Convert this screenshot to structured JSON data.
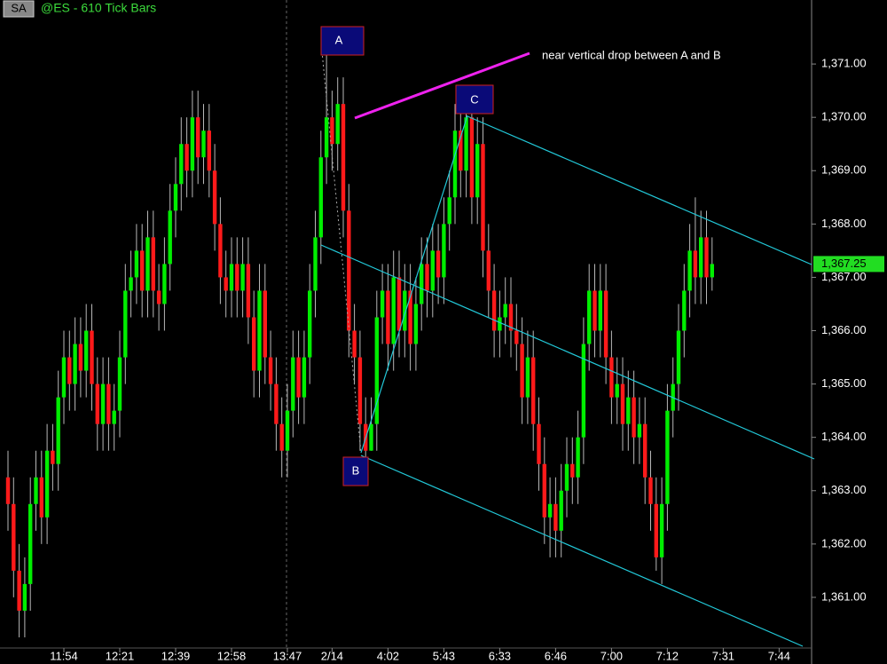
{
  "header": {
    "badge": "SA",
    "title": "@ES - 610 Tick Bars"
  },
  "chart_data": {
    "type": "candlestick",
    "categories": [
      null,
      null,
      null,
      null,
      null,
      null,
      null,
      null,
      null,
      null,
      "11:54",
      null,
      null,
      null,
      null,
      null,
      null,
      null,
      null,
      null,
      "12:21",
      null,
      null,
      null,
      null,
      null,
      null,
      null,
      null,
      null,
      "12:39",
      null,
      null,
      null,
      null,
      null,
      null,
      null,
      null,
      null,
      "12:58",
      null,
      null,
      null,
      null,
      null,
      null,
      null,
      null,
      null,
      "13:47",
      null,
      null,
      null,
      null,
      null,
      null,
      null,
      "2/14",
      null,
      null,
      null,
      null,
      null,
      null,
      null,
      null,
      null,
      "4:02",
      null,
      null,
      null,
      null,
      null,
      null,
      null,
      null,
      null,
      "5:43",
      null,
      null,
      null,
      null,
      null,
      null,
      null,
      null,
      null,
      "6:33",
      null,
      null,
      null,
      null,
      null,
      null,
      null,
      null,
      null,
      "6:46",
      null,
      null,
      null,
      null,
      null,
      null,
      null,
      null,
      null,
      "7:00",
      null,
      null,
      null,
      null,
      null,
      null,
      null,
      null,
      null,
      "7:12",
      null,
      null,
      null,
      null,
      null,
      null,
      null,
      null,
      null,
      "7:31",
      null,
      null,
      null,
      null,
      null,
      null,
      null,
      null,
      null,
      "7:44"
    ],
    "open": [
      1363.25,
      1362.75,
      1361.5,
      1360.75,
      1361.25,
      1362.75,
      1363.25,
      1362.5,
      1363.75,
      1363.5,
      1364.75,
      1365.5,
      1365,
      1365.75,
      1365.25,
      1366,
      1365,
      1364.25,
      1365,
      1364.25,
      1364.5,
      1365.5,
      1366.75,
      1367,
      1367.5,
      1366.75,
      1367.75,
      1366.75,
      1366.5,
      1367.25,
      1368.25,
      1368.75,
      1369.5,
      1369,
      1370,
      1369.25,
      1369.75,
      1369,
      1368,
      1367,
      1366.75,
      1367.25,
      1366.75,
      1367.25,
      1366.25,
      1365.25,
      1366.75,
      1365.5,
      1365,
      1364.25,
      1363.75,
      1364.5,
      1365.5,
      1364.75,
      1365.5,
      1366.75,
      1367.75,
      1369.25,
      1370,
      1369.5,
      1370.25,
      1368.25,
      1366,
      1365.5,
      1364.25,
      1363.75,
      1364.25,
      1366.25,
      1366.75,
      1365.75,
      1367,
      1366,
      1366.75,
      1365.75,
      1366.5,
      1367.25,
      1366.75,
      1367.5,
      1367,
      1368,
      1368.5,
      1369.75,
      1369,
      1370,
      1368.5,
      1369.5,
      1367.5,
      1366.75,
      1366,
      1366.25,
      1366.5,
      1366,
      1365.75,
      1364.75,
      1365.5,
      1364.25,
      1363.5,
      1362.5,
      1362.75,
      1362.25,
      1363,
      1363.5,
      1363.25,
      1364,
      1365.75,
      1366.75,
      1366,
      1366.75,
      1365.5,
      1364.75,
      1365,
      1364.25,
      1364.75,
      1364,
      1364.25,
      1363.25,
      1362.75,
      1361.75,
      1362.75,
      1364.5,
      1365,
      1366,
      1366.75,
      1367.5,
      1367,
      1367.75,
      1367,
      null,
      null,
      null,
      null,
      null,
      null,
      null,
      null,
      null,
      null,
      null,
      null
    ],
    "high": [
      1363.75,
      1363.25,
      1362,
      1361.75,
      1363.25,
      1363.75,
      1363.75,
      1364.25,
      1364.25,
      1365.25,
      1366,
      1366,
      1366.25,
      1366.25,
      1366.5,
      1366.5,
      1365.5,
      1365.5,
      1365.5,
      1365,
      1366,
      1367.25,
      1367.5,
      1368,
      1368,
      1368.25,
      1368.25,
      1367.25,
      1367.75,
      1368.75,
      1369.25,
      1370,
      1370,
      1370.5,
      1370.5,
      1370.25,
      1370.25,
      1369.5,
      1368.5,
      1367.5,
      1367.75,
      1367.75,
      1367.75,
      1367.75,
      1366.75,
      1367.25,
      1367.25,
      1366,
      1365.5,
      1364.75,
      1365,
      1366,
      1366,
      1366,
      1367.25,
      1368.25,
      1369.75,
      1371.5,
      1370.5,
      1370.75,
      1370.75,
      1368.75,
      1366.5,
      1366,
      1364.75,
      1364.75,
      1366.75,
      1367.25,
      1367.25,
      1367.5,
      1367.5,
      1367.25,
      1367.25,
      1367,
      1367.75,
      1367.75,
      1368,
      1368,
      1368.5,
      1369,
      1370.25,
      1370.25,
      1370.25,
      1370.25,
      1370,
      1370,
      1368,
      1367.25,
      1366.75,
      1367,
      1367,
      1366.5,
      1366.25,
      1366,
      1366,
      1364.75,
      1364,
      1363.25,
      1363.25,
      1363.5,
      1364,
      1364,
      1364.5,
      1366.25,
      1367.25,
      1367.25,
      1367.25,
      1367.25,
      1366,
      1365.5,
      1365.5,
      1365.25,
      1365.25,
      1364.75,
      1364.75,
      1363.75,
      1363.25,
      1363.25,
      1365,
      1365.5,
      1366.5,
      1367.25,
      1368,
      1368.5,
      1368.25,
      1368.25,
      1367.75,
      null,
      null,
      null,
      null,
      null,
      null,
      null,
      null,
      null,
      null,
      null,
      null
    ],
    "low": [
      1362.25,
      1361,
      1360.25,
      1360.25,
      1360.75,
      1362.25,
      1362,
      1362,
      1363,
      1363,
      1364.25,
      1364.5,
      1364.5,
      1364.75,
      1364.75,
      1364.5,
      1363.75,
      1363.75,
      1363.75,
      1363.75,
      1364,
      1365,
      1366.25,
      1366.5,
      1366.25,
      1366.25,
      1366.25,
      1366,
      1366,
      1366.75,
      1367.75,
      1368.25,
      1368.5,
      1368.5,
      1368.75,
      1368.75,
      1368.5,
      1367.5,
      1366.5,
      1366.25,
      1366.25,
      1366.25,
      1366.25,
      1365.75,
      1364.75,
      1364.75,
      1365,
      1364.5,
      1363.75,
      1363.25,
      1363.25,
      1364,
      1364.25,
      1364.25,
      1365,
      1366.25,
      1367.25,
      1368.75,
      1369,
      1369,
      1367.75,
      1365.5,
      1365,
      1363.75,
      1363.5,
      1363.75,
      1363.75,
      1365.75,
      1365.25,
      1365.25,
      1365.5,
      1365.5,
      1365.25,
      1365.25,
      1366,
      1366.25,
      1366.25,
      1366.5,
      1366.5,
      1367.5,
      1368,
      1368.5,
      1368.5,
      1368,
      1368,
      1367,
      1366.25,
      1365.5,
      1365.5,
      1365.75,
      1365.5,
      1365.25,
      1364.25,
      1364.25,
      1363.75,
      1363,
      1362,
      1361.75,
      1361.75,
      1361.75,
      1362.5,
      1362.75,
      1362.75,
      1363.5,
      1365.25,
      1365.5,
      1365.5,
      1365,
      1364.25,
      1364.25,
      1363.75,
      1363.75,
      1363.5,
      1363.5,
      1362.75,
      1362.25,
      1361.5,
      1361.25,
      1362.25,
      1364,
      1364.5,
      1365.5,
      1366.25,
      1366.5,
      1366.5,
      1366.5,
      1366.75,
      null,
      null,
      null,
      null,
      null,
      null,
      null,
      null,
      null,
      null,
      null,
      null
    ],
    "close": [
      1362.75,
      1361.5,
      1360.75,
      1361.25,
      1362.75,
      1363.25,
      1362.5,
      1363.75,
      1363.5,
      1364.75,
      1365.5,
      1365,
      1365.75,
      1365.25,
      1366,
      1365,
      1364.25,
      1365,
      1364.25,
      1364.5,
      1365.5,
      1366.75,
      1367,
      1367.5,
      1366.75,
      1367.75,
      1366.75,
      1366.5,
      1367.25,
      1368.25,
      1368.75,
      1369.5,
      1369,
      1370,
      1369.25,
      1369.75,
      1369,
      1368,
      1367,
      1366.75,
      1367.25,
      1366.75,
      1367.25,
      1366.25,
      1365.25,
      1366.75,
      1365.5,
      1365,
      1364.25,
      1363.75,
      1364.5,
      1365.5,
      1364.75,
      1365.5,
      1366.75,
      1367.75,
      1369.25,
      1370,
      1369.5,
      1370.25,
      1368.25,
      1366,
      1365.5,
      1364.25,
      1363.75,
      1364.25,
      1366.25,
      1366.75,
      1365.75,
      1367,
      1366,
      1366.75,
      1365.75,
      1366.5,
      1367.25,
      1366.75,
      1367.5,
      1367,
      1368,
      1368.5,
      1369.75,
      1369,
      1370,
      1368.5,
      1369.5,
      1367.5,
      1366.75,
      1366,
      1366.25,
      1366.5,
      1366,
      1365.75,
      1364.75,
      1365.5,
      1364.25,
      1363.5,
      1362.5,
      1362.75,
      1362.25,
      1363,
      1363.5,
      1363.25,
      1364,
      1365.75,
      1366.75,
      1366,
      1366.75,
      1365.5,
      1364.75,
      1365,
      1364.25,
      1364.75,
      1364,
      1364.25,
      1363.25,
      1362.75,
      1361.75,
      1362.75,
      1364.5,
      1365,
      1366,
      1366.75,
      1367.5,
      1367,
      1367.75,
      1367,
      1367.25,
      null,
      null,
      null,
      null,
      null,
      null,
      null,
      null,
      null,
      null,
      null,
      null
    ],
    "up_color": "#00ee00",
    "down_color": "#ff1a1a",
    "ylim": [
      1360.05,
      1372.2
    ],
    "yticks": [
      {
        "value": 1361,
        "label": "1,361.00"
      },
      {
        "value": 1362,
        "label": "1,362.00"
      },
      {
        "value": 1363,
        "label": "1,363.00"
      },
      {
        "value": 1364,
        "label": "1,364.00"
      },
      {
        "value": 1365,
        "label": "1,365.00"
      },
      {
        "value": 1366,
        "label": "1,366.00"
      },
      {
        "value": 1367,
        "label": "1,367.00"
      },
      {
        "value": 1368,
        "label": "1,368.00"
      },
      {
        "value": 1369,
        "label": "1,369.00"
      },
      {
        "value": 1370,
        "label": "1,370.00"
      },
      {
        "value": 1371,
        "label": "1,371.00"
      }
    ],
    "last_price": {
      "value": 1367.25,
      "label": "1,367.25"
    },
    "annotations": [
      "A",
      "B",
      "C",
      "near vertical drop between A and B"
    ]
  }
}
